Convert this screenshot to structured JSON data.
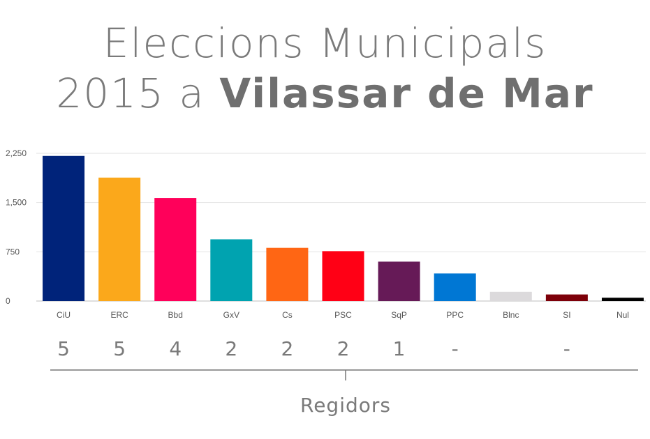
{
  "title_line1": "Eleccions Municipals",
  "title_line2_prefix": "2015 a ",
  "title_line2_bold": "Vilassar de Mar",
  "chart_data": {
    "type": "bar",
    "categories": [
      "CiU",
      "ERC",
      "Bbd",
      "GxV",
      "Cs",
      "PSC",
      "SqP",
      "PPC",
      "Blnc",
      "SI",
      "Nul"
    ],
    "values": [
      2210,
      1880,
      1570,
      940,
      810,
      760,
      600,
      420,
      140,
      100,
      50
    ],
    "colors": [
      "#00237a",
      "#fba81b",
      "#ff005a",
      "#00a3b0",
      "#ff6614",
      "#ff0015",
      "#661a57",
      "#0077d4",
      "#dcdadc",
      "#7d0009",
      "#000000"
    ],
    "yticks": [
      "0",
      "750",
      "1,500",
      "2,250"
    ],
    "ylim": [
      0,
      2250
    ],
    "grid": true
  },
  "regidors": {
    "title": "Regidors",
    "seats": [
      "5",
      "5",
      "4",
      "2",
      "2",
      "2",
      "1",
      "-",
      "",
      "-",
      ""
    ]
  }
}
